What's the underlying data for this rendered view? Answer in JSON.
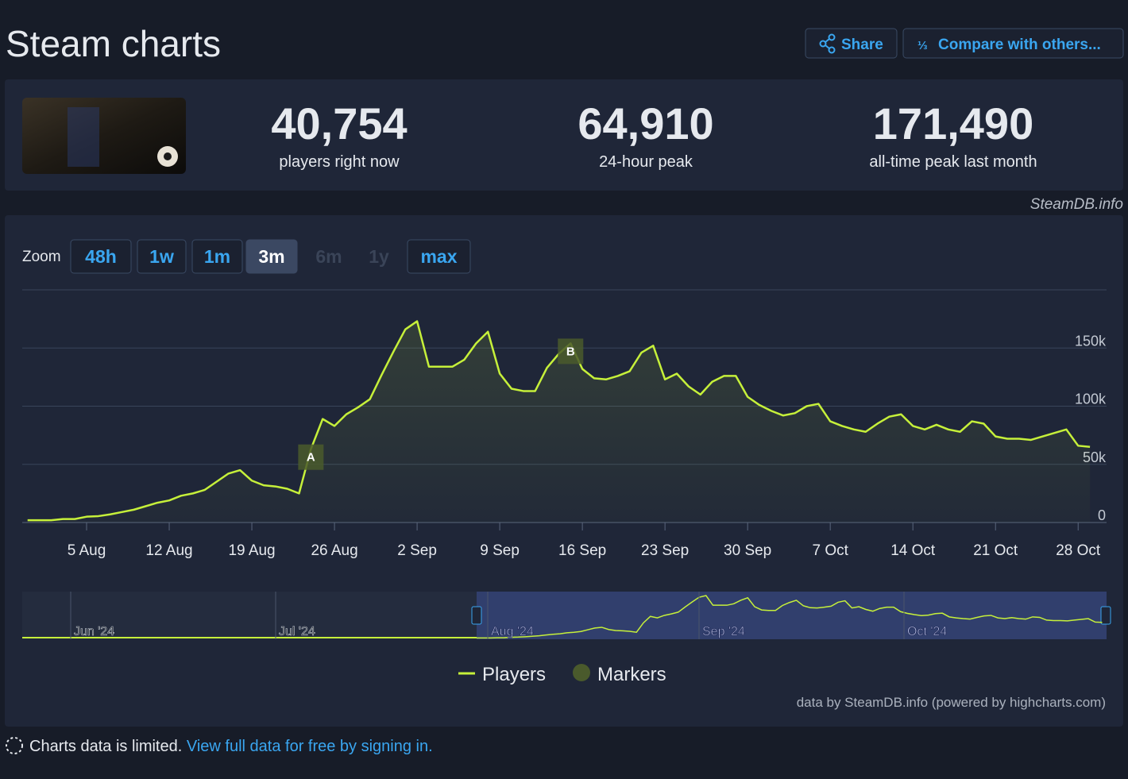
{
  "header": {
    "title": "Steam charts",
    "buttons": [
      "Share",
      "Compare with others..."
    ]
  },
  "stats": [
    {
      "value": "40,754",
      "label": "players right now"
    },
    {
      "value": "64,910",
      "label": "24-hour peak"
    },
    {
      "value": "171,490",
      "label": "all-time peak last month"
    }
  ],
  "watermark": "SteamDB.info",
  "zoom": {
    "label": "Zoom",
    "options": [
      "48h",
      "1w",
      "1m",
      "3m",
      "6m",
      "1y",
      "max"
    ],
    "active": 3,
    "disabled": [
      4,
      5
    ]
  },
  "chart_data": {
    "type": "line",
    "categories": [
      null,
      null,
      null,
      null,
      null,
      "5 Aug",
      null,
      null,
      null,
      null,
      null,
      null,
      "12 Aug",
      null,
      null,
      null,
      null,
      null,
      null,
      "19 Aug",
      null,
      null,
      null,
      null,
      null,
      null,
      "26 Aug",
      null,
      null,
      null,
      null,
      null,
      null,
      "2 Sep",
      null,
      null,
      null,
      null,
      null,
      null,
      "9 Sep",
      null,
      null,
      null,
      null,
      null,
      null,
      "16 Sep",
      null,
      null,
      null,
      null,
      null,
      null,
      "23 Sep",
      null,
      null,
      null,
      null,
      null,
      null,
      "30 Sep",
      null,
      null,
      null,
      null,
      null,
      null,
      "7 Oct",
      null,
      null,
      null,
      null,
      null,
      null,
      "14 Oct",
      null,
      null,
      null,
      null,
      null,
      null,
      "21 Oct",
      null,
      null,
      null,
      null,
      null,
      null,
      "28 Oct",
      null
    ],
    "series": [
      {
        "name": "Players",
        "color": "#c6f03a",
        "values": [
          2000,
          2000,
          2000,
          3000,
          3000,
          5000,
          5500,
          7000,
          9000,
          11000,
          14000,
          17000,
          19000,
          23000,
          25000,
          28000,
          35000,
          42000,
          45000,
          36000,
          32000,
          31000,
          29000,
          25000,
          63000,
          89000,
          83000,
          93000,
          99000,
          106000,
          127000,
          147000,
          166000,
          173000,
          134000,
          134000,
          134000,
          140000,
          154000,
          164000,
          128000,
          115000,
          113000,
          113000,
          133000,
          145000,
          154000,
          132000,
          124000,
          123000,
          126000,
          130000,
          146000,
          152000,
          123000,
          128000,
          117000,
          110000,
          121000,
          126000,
          126000,
          108000,
          101000,
          96000,
          92000,
          94000,
          100000,
          102000,
          87000,
          83000,
          80000,
          78000,
          85000,
          91000,
          93000,
          83000,
          80000,
          84000,
          80000,
          78000,
          87000,
          85000,
          74000,
          72000,
          72000,
          71000,
          74000,
          77000,
          80000,
          66000,
          65000
        ]
      },
      {
        "name": "Markers",
        "color": "#4a5a2c",
        "points": [
          {
            "label": "A",
            "at": 24
          },
          {
            "label": "B",
            "at": 46
          }
        ]
      }
    ],
    "ylim": [
      0,
      200000
    ],
    "yticks": [
      0,
      {
        "value": 50000,
        "label": "50k"
      },
      {
        "value": 100000,
        "label": "100k"
      },
      {
        "value": 150000,
        "label": "150k"
      }
    ],
    "grid": true,
    "navigator": {
      "labels": [
        "Jun '24",
        "Jul '24",
        "Aug '24",
        "Sep '24",
        "Oct '24"
      ]
    },
    "credit": "data by SteamDB.info (powered by highcharts.com)"
  },
  "footer": {
    "text": "Charts data is limited.",
    "link": "View full data for free by signing in."
  }
}
